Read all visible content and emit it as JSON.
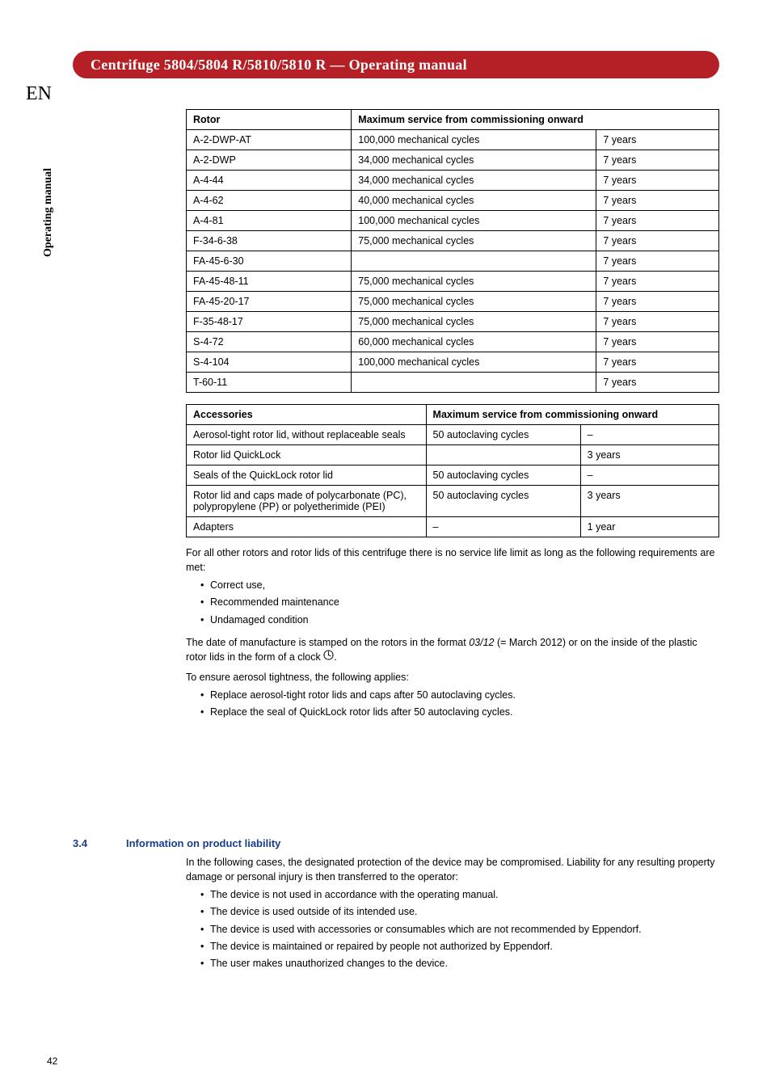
{
  "sideTab": "Operating manual",
  "lang": "EN",
  "titleBar": "Centrifuge 5804/5804 R/5810/5810 R  —  Operating manual",
  "table1": {
    "header": {
      "rotor": "Rotor",
      "max": "Maximum service from commissioning onward"
    },
    "rows": [
      {
        "r": "A-2-DWP-AT",
        "c": "100,000 mechanical cycles",
        "y": "7 years"
      },
      {
        "r": "A-2-DWP",
        "c": "34,000 mechanical cycles",
        "y": "7 years"
      },
      {
        "r": "A-4-44",
        "c": "34,000 mechanical cycles",
        "y": "7 years"
      },
      {
        "r": "A-4-62",
        "c": "40,000 mechanical cycles",
        "y": "7 years"
      },
      {
        "r": "A-4-81",
        "c": "100,000 mechanical cycles",
        "y": "7 years"
      },
      {
        "r": "F-34-6-38",
        "c": "75,000 mechanical cycles",
        "y": "7 years"
      },
      {
        "r": "FA-45-6-30",
        "c": "",
        "y": "7 years"
      },
      {
        "r": "FA-45-48-11",
        "c": "75,000 mechanical cycles",
        "y": "7 years"
      },
      {
        "r": "FA-45-20-17",
        "c": "75,000 mechanical cycles",
        "y": "7 years"
      },
      {
        "r": "F-35-48-17",
        "c": "75,000 mechanical cycles",
        "y": "7 years"
      },
      {
        "r": "S-4-72",
        "c": "60,000 mechanical cycles",
        "y": "7 years"
      },
      {
        "r": "S-4-104",
        "c": "100,000 mechanical cycles",
        "y": "7 years"
      },
      {
        "r": "T-60-11",
        "c": "",
        "y": "7 years"
      }
    ]
  },
  "table2": {
    "header": {
      "acc": "Accessories",
      "max": "Maximum service from commissioning onward"
    },
    "rows": [
      {
        "a": "Aerosol-tight rotor lid, without replaceable seals",
        "c": "50 autoclaving cycles",
        "y": "–"
      },
      {
        "a": "Rotor lid QuickLock",
        "c": "",
        "y": "3 years"
      },
      {
        "a": "Seals of the QuickLock rotor lid",
        "c": "50 autoclaving cycles",
        "y": "–"
      },
      {
        "a": "Rotor lid and caps made of polycarbonate (PC), polypropylene (PP) or polyetherimide (PEI)",
        "c": "50 autoclaving cycles",
        "y": "3 years"
      },
      {
        "a": "Adapters",
        "c": "–",
        "y": "1 year"
      }
    ]
  },
  "para1": "For all other rotors and rotor lids of this centrifuge there is no service life limit as long as the following requirements are met:",
  "bullets1": [
    "Correct use,",
    "Recommended maintenance",
    "Undamaged condition"
  ],
  "para2a": "The date of manufacture is stamped on the rotors in the format ",
  "para2i": "03/12",
  "para2b": " (= March 2012) or on the inside of the plastic rotor lids in the form of a clock ",
  "para2c": ".",
  "para3": "To ensure aerosol tightness, the following applies:",
  "bullets2": [
    "Replace aerosol-tight rotor lids and caps after 50 autoclaving cycles.",
    "Replace the seal of QuickLock rotor lids after 50 autoclaving cycles."
  ],
  "section": {
    "num": "3.4",
    "title": "Information on product liability"
  },
  "para4": "In the following cases, the designated protection of the device may be compromised. Liability for any resulting property damage or personal injury is then transferred to the operator:",
  "bullets3": [
    "The device is not used in accordance with the operating manual.",
    "The device is used outside of its intended use.",
    "The device is used with accessories or consumables which are not recommended by Eppendorf.",
    "The device is maintained or repaired by people not authorized by Eppendorf.",
    "The user makes unauthorized changes to the device."
  ],
  "pageNum": "42",
  "colors": {
    "accent": "#b42025",
    "heading": "#1a3e8c",
    "border": "#000000",
    "bg": "#ffffff"
  }
}
